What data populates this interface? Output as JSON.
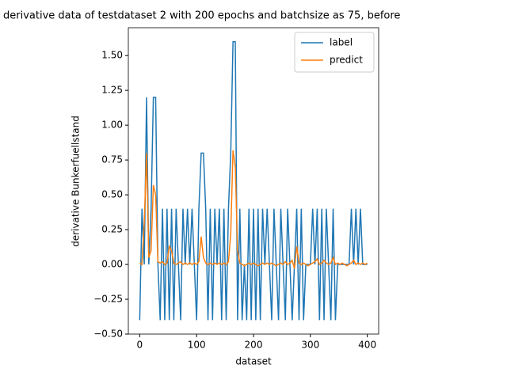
{
  "chart_data": {
    "type": "line",
    "title": "derivative data of testdataset 2 with 200 epochs and batchsize as 75, before",
    "x_label": "dataset",
    "y_label": "derivative Bunkerfuellstand",
    "x": [
      0,
      4,
      8,
      12,
      16,
      20,
      24,
      28,
      32,
      36,
      40,
      44,
      48,
      52,
      56,
      60,
      64,
      68,
      72,
      76,
      80,
      84,
      88,
      92,
      96,
      100,
      104,
      108,
      112,
      116,
      120,
      124,
      128,
      132,
      136,
      140,
      144,
      148,
      152,
      156,
      160,
      164,
      168,
      172,
      176,
      180,
      184,
      188,
      192,
      196,
      200,
      204,
      208,
      212,
      216,
      220,
      224,
      228,
      232,
      236,
      240,
      244,
      248,
      252,
      256,
      260,
      264,
      268,
      272,
      276,
      280,
      284,
      288,
      292,
      296,
      300,
      304,
      308,
      312,
      316,
      320,
      324,
      328,
      332,
      336,
      340,
      344,
      348,
      352,
      356,
      360,
      364,
      368,
      372,
      376,
      380,
      384,
      388,
      392,
      396,
      400
    ],
    "series": [
      {
        "name": "label",
        "color": "#1f77b4",
        "values": [
          -0.4,
          0.4,
          0,
          1.2,
          0,
          0.4,
          1.2,
          1.2,
          0,
          -0.4,
          0.4,
          -0.4,
          0.4,
          -0.4,
          0.4,
          -0.4,
          0.4,
          0,
          -0.4,
          0.4,
          0,
          0.4,
          0,
          0.4,
          0,
          -0.4,
          0.4,
          0.8,
          0.8,
          0.4,
          -0.4,
          0.4,
          -0.4,
          0.4,
          0,
          0.4,
          -0.4,
          0.4,
          -0.4,
          0.4,
          0.8,
          1.6,
          1.6,
          -0.4,
          0.4,
          -0.4,
          0,
          -0.4,
          0.4,
          -0.4,
          0.4,
          -0.4,
          0.4,
          -0.4,
          0.4,
          0,
          0.4,
          0,
          -0.4,
          0.4,
          0,
          -0.4,
          0.4,
          0,
          -0.4,
          0.4,
          0,
          -0.4,
          0,
          0.4,
          -0.4,
          0.4,
          -0.4,
          0,
          0,
          0,
          0.4,
          0,
          0.4,
          -0.4,
          0.4,
          -0.4,
          0.4,
          0,
          -0.4,
          0.4,
          -0.4,
          0,
          0,
          0,
          0,
          0,
          0,
          0.4,
          0,
          0.4,
          0,
          0.4,
          0,
          0,
          0
        ]
      },
      {
        "name": "predict",
        "color": "#ff7f0e",
        "values": [
          0.01,
          0,
          0.3,
          0.8,
          0.05,
          0.1,
          0.57,
          0.5,
          0.02,
          0.01,
          0.02,
          0,
          0.01,
          0.13,
          0.1,
          0.01,
          0,
          0.01,
          0.02,
          0,
          0.01,
          0,
          0.01,
          0,
          0.01,
          0,
          0.02,
          0.2,
          0.05,
          0.01,
          0,
          0.01,
          0,
          0.01,
          0,
          0.01,
          0,
          0.01,
          0,
          0.02,
          0.22,
          0.82,
          0.7,
          0.1,
          0.01,
          0,
          -0.01,
          0,
          0.01,
          0,
          0.01,
          0,
          -0.01,
          0,
          0.01,
          0,
          0.01,
          0,
          0.01,
          0,
          -0.01,
          0,
          0.01,
          0,
          0.02,
          0,
          0.01,
          0.03,
          -0.03,
          0.13,
          0.01,
          0,
          0.01,
          0,
          -0.01,
          0,
          0.01,
          0.02,
          0.04,
          0,
          0.01,
          0.03,
          0.01,
          0,
          0.01,
          0.05,
          0,
          0.01,
          0,
          0.01,
          0,
          -0.01,
          0,
          0.01,
          0.03,
          0,
          0.01,
          0,
          0.01,
          0,
          0.01
        ]
      }
    ],
    "xlim": [
      -20,
      420
    ],
    "xticks": [
      0,
      100,
      200,
      300,
      400
    ],
    "ylim": [
      -0.5,
      1.7
    ],
    "yticks": [
      {
        "value": -0.5,
        "label": "−0.50"
      },
      {
        "value": -0.25,
        "label": "−0.25"
      },
      {
        "value": 0,
        "label": "0.00"
      },
      {
        "value": 0.25,
        "label": "0.25"
      },
      {
        "value": 0.5,
        "label": "0.50"
      },
      {
        "value": 0.75,
        "label": "0.75"
      },
      {
        "value": 1.0,
        "label": "1.00"
      },
      {
        "value": 1.25,
        "label": "1.25"
      },
      {
        "value": 1.5,
        "label": "1.50"
      }
    ],
    "legend": "upper right"
  }
}
